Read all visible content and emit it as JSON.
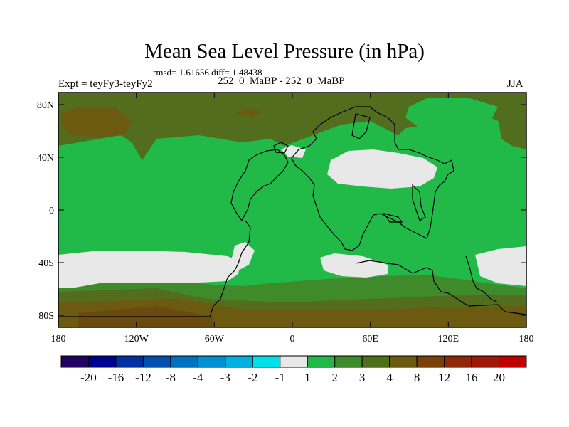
{
  "title": "Mean Sea Level Pressure (in hPa)",
  "stats": "rmsd= 1.61656 diff= 1.48438",
  "left_label": "Expt = teyFy3-teyFy2",
  "center_label": "252_0_MaBP - 252_0_MaBP",
  "right_label": "JJA",
  "lat_ticks": [
    "80N",
    "40N",
    "0",
    "40S",
    "80S"
  ],
  "lon_ticks": [
    "180",
    "120W",
    "60W",
    "0",
    "60E",
    "120E",
    "180"
  ],
  "colorbar": {
    "colors": [
      "#200060",
      "#000090",
      "#0030a0",
      "#0050b0",
      "#0070c0",
      "#0090d0",
      "#00b0e0",
      "#00e0e8",
      "#e8e8e8",
      "#20b848",
      "#3f8a2a",
      "#4f6e1a",
      "#6b5a10",
      "#7a4008",
      "#902808",
      "#a01808",
      "#c00000"
    ],
    "labels": [
      "-20",
      "-16",
      "-12",
      "-8",
      "-4",
      "-3",
      "-2",
      "-1",
      "1",
      "2",
      "3",
      "4",
      "8",
      "12",
      "16",
      "20"
    ]
  },
  "map_colors": {
    "bg": "#21b947",
    "white": "#e8e8e8",
    "green3": "#3f8a2a",
    "olive": "#526d1d",
    "brown": "#6b5a10"
  }
}
